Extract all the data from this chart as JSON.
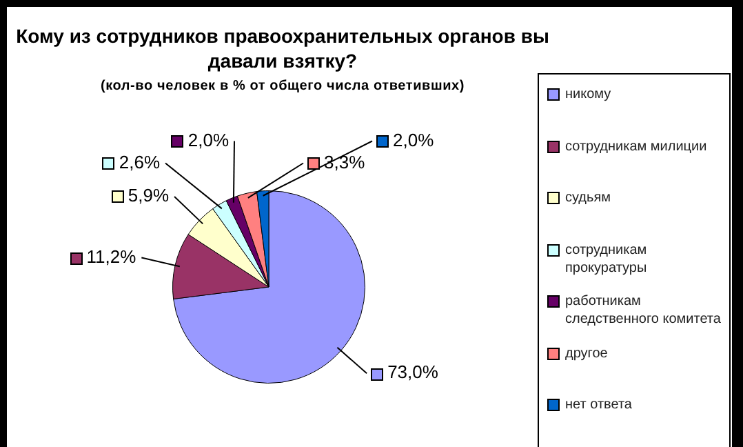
{
  "chart_data": {
    "type": "pie",
    "title": "Кому из сотрудников правоохранительных органов вы давали взятку?",
    "subtitle": "(кол-во человек в % от общего числа ответивших)",
    "categories": [
      "никому",
      "сотрудникам милиции",
      "судьям",
      "сотрудникам прокуратуры",
      "работникам следственного комитета",
      "другое",
      "нет ответа"
    ],
    "values": [
      73.0,
      11.2,
      5.9,
      2.6,
      2.0,
      3.3,
      2.0
    ],
    "value_labels": [
      "73,0%",
      "11,2%",
      "5,9%",
      "2,6%",
      "2,0%",
      "3,3%",
      "2,0%"
    ],
    "colors": [
      "#9999ff",
      "#993366",
      "#ffffcc",
      "#ccffff",
      "#660066",
      "#ff8080",
      "#0066cc"
    ],
    "legend": "right"
  }
}
